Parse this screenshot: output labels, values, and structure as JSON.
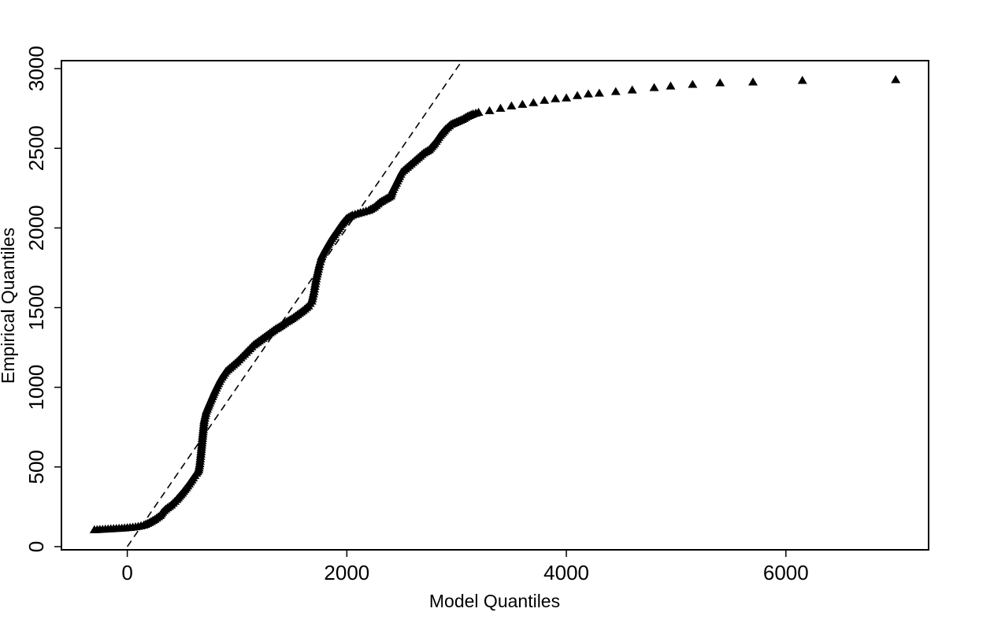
{
  "chart_data": {
    "type": "scatter",
    "title": "",
    "xlabel": "Model Quantiles",
    "ylabel": "Empirical Quantiles",
    "xlim": [
      -600,
      7300
    ],
    "ylim": [
      -20,
      3050
    ],
    "x_ticks": [
      0,
      2000,
      4000,
      6000
    ],
    "y_ticks": [
      0,
      500,
      1000,
      1500,
      2000,
      2500,
      3000
    ],
    "x_tick_labels": [
      "0",
      "2000",
      "4000",
      "6000"
    ],
    "y_tick_labels": [
      "0",
      "500",
      "1000",
      "1500",
      "2000",
      "2500",
      "3000"
    ],
    "marker": "triangle",
    "grid": false,
    "reference_line": {
      "style": "dashed",
      "points": [
        [
          0,
          0
        ],
        [
          3050,
          3050
        ]
      ]
    },
    "series": [
      {
        "points": [
          [
            -300,
            105
          ],
          [
            -250,
            107
          ],
          [
            -200,
            109
          ],
          [
            -150,
            111
          ],
          [
            -100,
            113
          ],
          [
            -50,
            115
          ],
          [
            0,
            118
          ],
          [
            50,
            121
          ],
          [
            100,
            126
          ],
          [
            150,
            134
          ],
          [
            200,
            150
          ],
          [
            250,
            170
          ],
          [
            300,
            195
          ],
          [
            320,
            215
          ],
          [
            350,
            235
          ],
          [
            400,
            260
          ],
          [
            450,
            295
          ],
          [
            500,
            335
          ],
          [
            550,
            380
          ],
          [
            600,
            430
          ],
          [
            630,
            460
          ],
          [
            650,
            480
          ],
          [
            660,
            520
          ],
          [
            670,
            580
          ],
          [
            680,
            650
          ],
          [
            690,
            720
          ],
          [
            700,
            790
          ],
          [
            720,
            850
          ],
          [
            750,
            900
          ],
          [
            800,
            980
          ],
          [
            850,
            1050
          ],
          [
            900,
            1100
          ],
          [
            950,
            1130
          ],
          [
            1000,
            1160
          ],
          [
            1050,
            1195
          ],
          [
            1100,
            1230
          ],
          [
            1150,
            1265
          ],
          [
            1200,
            1290
          ],
          [
            1250,
            1315
          ],
          [
            1300,
            1340
          ],
          [
            1350,
            1365
          ],
          [
            1400,
            1385
          ],
          [
            1450,
            1410
          ],
          [
            1500,
            1430
          ],
          [
            1550,
            1455
          ],
          [
            1600,
            1480
          ],
          [
            1650,
            1510
          ],
          [
            1680,
            1540
          ],
          [
            1700,
            1600
          ],
          [
            1720,
            1680
          ],
          [
            1750,
            1770
          ],
          [
            1770,
            1820
          ],
          [
            1800,
            1860
          ],
          [
            1850,
            1920
          ],
          [
            1900,
            1970
          ],
          [
            1950,
            2020
          ],
          [
            2000,
            2060
          ],
          [
            2050,
            2080
          ],
          [
            2100,
            2090
          ],
          [
            2150,
            2100
          ],
          [
            2200,
            2110
          ],
          [
            2250,
            2130
          ],
          [
            2300,
            2160
          ],
          [
            2350,
            2180
          ],
          [
            2400,
            2200
          ],
          [
            2420,
            2240
          ],
          [
            2450,
            2280
          ],
          [
            2500,
            2350
          ],
          [
            2550,
            2380
          ],
          [
            2600,
            2410
          ],
          [
            2650,
            2440
          ],
          [
            2700,
            2470
          ],
          [
            2750,
            2490
          ],
          [
            2800,
            2530
          ],
          [
            2850,
            2580
          ],
          [
            2900,
            2620
          ],
          [
            2950,
            2650
          ],
          [
            3000,
            2665
          ],
          [
            3050,
            2680
          ],
          [
            3100,
            2700
          ],
          [
            3150,
            2715
          ],
          [
            3200,
            2725
          ],
          [
            3300,
            2735
          ],
          [
            3400,
            2750
          ],
          [
            3500,
            2765
          ],
          [
            3600,
            2775
          ],
          [
            3700,
            2785
          ],
          [
            3800,
            2800
          ],
          [
            3900,
            2810
          ],
          [
            4000,
            2815
          ],
          [
            4100,
            2830
          ],
          [
            4200,
            2840
          ],
          [
            4300,
            2845
          ],
          [
            4450,
            2855
          ],
          [
            4600,
            2865
          ],
          [
            4800,
            2880
          ],
          [
            4950,
            2890
          ],
          [
            5150,
            2900
          ],
          [
            5400,
            2910
          ],
          [
            5700,
            2915
          ],
          [
            6150,
            2925
          ],
          [
            7000,
            2930
          ]
        ]
      }
    ]
  }
}
